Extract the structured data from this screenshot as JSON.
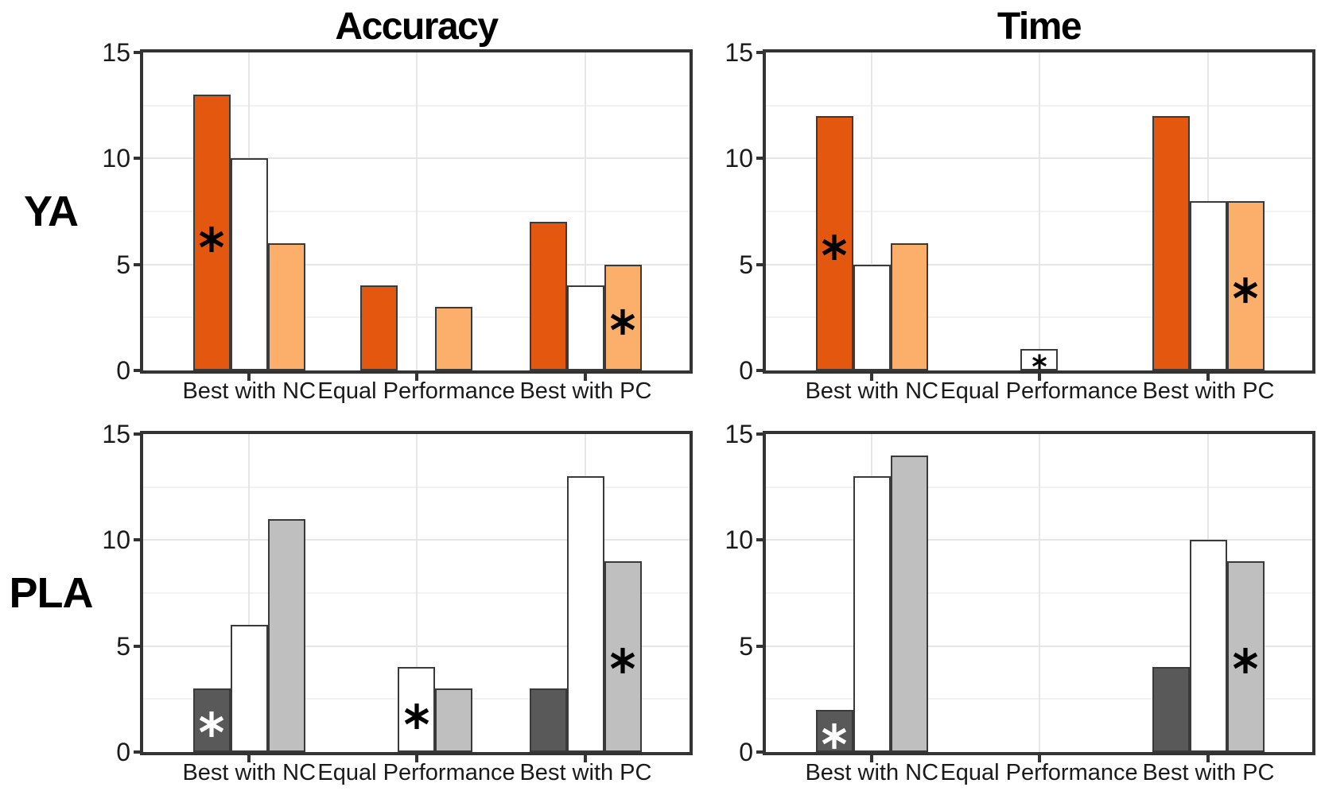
{
  "style": {
    "frame_color": "#333333",
    "bar_border_color": "#3A3A3A",
    "gridline_major_color": "#E6E6E6",
    "gridline_minor_color": "#F2F2F2",
    "text_color": "#1A1A1A",
    "ya_dark": "#E4570F",
    "ya_light": "#FCAE6B",
    "pla_dark": "#595959",
    "pla_light": "#BFBFBF",
    "white_bar": "#FFFFFF"
  },
  "chart_data": [
    {
      "id": "ya-accuracy",
      "type": "bar",
      "row_label": "YA",
      "column_title": "Accuracy",
      "ylim": [
        0,
        15
      ],
      "yticks": [
        0,
        5,
        10,
        15
      ],
      "gridlines": [
        2.5,
        5,
        7.5,
        10,
        12.5
      ],
      "categories": [
        "Best with NC",
        "Equal Performance",
        "Best with PC"
      ],
      "series": [
        {
          "name": "dark-orange",
          "color": "#E4570F",
          "values": [
            13,
            4,
            7
          ]
        },
        {
          "name": "white",
          "color": "#FFFFFF",
          "values": [
            10,
            0,
            4
          ]
        },
        {
          "name": "light-orange",
          "color": "#FCAE6B",
          "values": [
            6,
            3,
            5
          ]
        }
      ],
      "annotations": [
        {
          "category_index": 0,
          "series_index": 0,
          "y": 6.2,
          "color": "#000000",
          "size": "large"
        },
        {
          "category_index": 2,
          "series_index": 2,
          "y": 2.3,
          "color": "#000000",
          "size": "large"
        }
      ]
    },
    {
      "id": "ya-time",
      "type": "bar",
      "row_label": "YA",
      "column_title": "Time",
      "ylim": [
        0,
        15
      ],
      "yticks": [
        0,
        5,
        10,
        15
      ],
      "gridlines": [
        2.5,
        5,
        7.5,
        10,
        12.5
      ],
      "categories": [
        "Best with NC",
        "Equal Performance",
        "Best with PC"
      ],
      "series": [
        {
          "name": "dark-orange",
          "color": "#E4570F",
          "values": [
            12,
            0,
            12
          ]
        },
        {
          "name": "white",
          "color": "#FFFFFF",
          "values": [
            5,
            1,
            8
          ]
        },
        {
          "name": "light-orange",
          "color": "#FCAE6B",
          "values": [
            6,
            0,
            8
          ]
        }
      ],
      "annotations": [
        {
          "category_index": 0,
          "series_index": 0,
          "y": 5.8,
          "color": "#000000",
          "size": "large"
        },
        {
          "category_index": 1,
          "series_index": 1,
          "y": 0.4,
          "color": "#000000",
          "size": "small"
        },
        {
          "category_index": 2,
          "series_index": 2,
          "y": 3.8,
          "color": "#000000",
          "size": "large"
        }
      ]
    },
    {
      "id": "pla-accuracy",
      "type": "bar",
      "row_label": "PLA",
      "column_title": "Accuracy",
      "ylim": [
        0,
        15
      ],
      "yticks": [
        0,
        5,
        10,
        15
      ],
      "gridlines": [
        2.5,
        5,
        7.5,
        10,
        12.5
      ],
      "categories": [
        "Best with NC",
        "Equal Performance",
        "Best with PC"
      ],
      "series": [
        {
          "name": "dark-gray",
          "color": "#595959",
          "values": [
            3,
            0,
            3
          ]
        },
        {
          "name": "white",
          "color": "#FFFFFF",
          "values": [
            6,
            4,
            13
          ]
        },
        {
          "name": "light-gray",
          "color": "#BFBFBF",
          "values": [
            11,
            3,
            9
          ]
        }
      ],
      "annotations": [
        {
          "category_index": 0,
          "series_index": 0,
          "y": 1.3,
          "color": "#FFFFFF",
          "size": "large"
        },
        {
          "category_index": 1,
          "series_index": 1,
          "y": 1.7,
          "color": "#000000",
          "size": "large"
        },
        {
          "category_index": 2,
          "series_index": 2,
          "y": 4.3,
          "color": "#000000",
          "size": "large"
        }
      ]
    },
    {
      "id": "pla-time",
      "type": "bar",
      "row_label": "PLA",
      "column_title": "Time",
      "ylim": [
        0,
        15
      ],
      "yticks": [
        0,
        5,
        10,
        15
      ],
      "gridlines": [
        2.5,
        5,
        7.5,
        10,
        12.5
      ],
      "categories": [
        "Best with NC",
        "Equal Performance",
        "Best with PC"
      ],
      "series": [
        {
          "name": "dark-gray",
          "color": "#595959",
          "values": [
            2,
            0,
            4
          ]
        },
        {
          "name": "white",
          "color": "#FFFFFF",
          "values": [
            13,
            0,
            10
          ]
        },
        {
          "name": "light-gray",
          "color": "#BFBFBF",
          "values": [
            14,
            0,
            9
          ]
        }
      ],
      "annotations": [
        {
          "category_index": 0,
          "series_index": 0,
          "y": 0.75,
          "color": "#FFFFFF",
          "size": "large"
        },
        {
          "category_index": 2,
          "series_index": 2,
          "y": 4.3,
          "color": "#000000",
          "size": "large"
        }
      ]
    }
  ]
}
